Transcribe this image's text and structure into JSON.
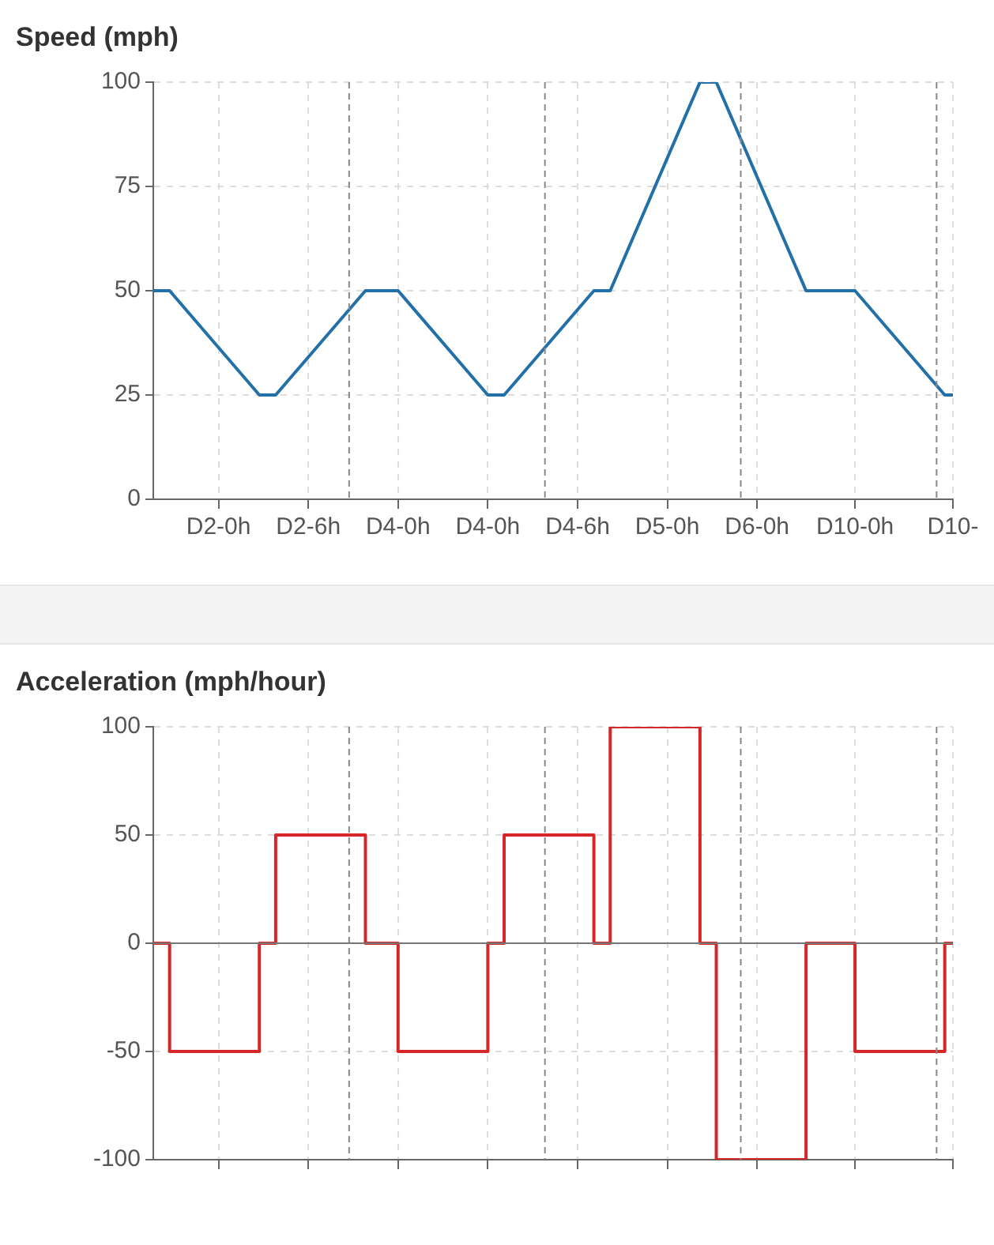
{
  "chart_data": [
    {
      "type": "line",
      "title": "Speed (mph)",
      "categories": [
        null,
        null,
        null,
        null,
        null,
        null,
        null,
        null,
        "D2-0h",
        null,
        null,
        null,
        null,
        null,
        null,
        null,
        null,
        null,
        null,
        "D2-6h",
        null,
        null,
        null,
        null,
        null,
        null,
        null,
        null,
        null,
        null,
        "D4-0h",
        null,
        null,
        null,
        null,
        null,
        null,
        null,
        null,
        null,
        null,
        "D4-0h",
        null,
        null,
        null,
        null,
        null,
        null,
        null,
        null,
        null,
        null,
        "D4-6h",
        null,
        null,
        null,
        null,
        null,
        null,
        null,
        null,
        null,
        null,
        "D5-0h",
        null,
        null,
        null,
        null,
        null,
        null,
        null,
        null,
        null,
        null,
        "D6-0h",
        null,
        null,
        null,
        null,
        null,
        null,
        null,
        null,
        null,
        null,
        null,
        "D10-0h",
        null,
        null,
        null,
        null,
        null,
        null,
        null,
        null,
        null,
        null,
        null,
        "D10-"
      ],
      "series": [
        {
          "color": "#2370a8",
          "values": [
            50,
            null,
            50,
            null,
            null,
            null,
            null,
            null,
            null,
            null,
            null,
            null,
            null,
            25,
            null,
            25,
            null,
            null,
            null,
            null,
            null,
            null,
            null,
            null,
            null,
            null,
            50,
            null,
            null,
            null,
            50,
            null,
            null,
            null,
            null,
            null,
            null,
            null,
            null,
            null,
            null,
            25,
            null,
            25,
            null,
            null,
            null,
            null,
            null,
            null,
            null,
            null,
            null,
            null,
            50,
            null,
            50,
            null,
            null,
            null,
            null,
            null,
            null,
            null,
            null,
            null,
            null,
            100,
            null,
            100,
            null,
            null,
            null,
            null,
            null,
            null,
            null,
            null,
            null,
            null,
            50,
            null,
            null,
            null,
            null,
            null,
            50,
            null,
            null,
            null,
            null,
            null,
            null,
            null,
            null,
            null,
            null,
            25,
            25
          ]
        }
      ],
      "ylim": [
        0,
        100
      ],
      "yticks": [
        0,
        25,
        50,
        75,
        100
      ],
      "grid": true,
      "legend": false,
      "marker": "none",
      "line_style": "solid"
    },
    {
      "type": "step",
      "title": "Acceleration (mph/hour)",
      "categories": [
        null,
        null,
        null,
        null,
        null,
        null,
        null,
        null,
        null,
        null,
        null,
        null,
        null,
        null,
        null,
        null,
        null,
        null,
        null,
        null,
        null,
        null,
        null,
        null,
        null,
        null,
        null,
        null,
        null,
        null,
        null,
        null,
        null,
        null,
        null,
        null,
        null,
        null,
        null,
        null,
        null,
        null,
        null,
        null,
        null,
        null,
        null,
        null,
        null,
        null,
        null,
        null,
        null,
        null,
        null,
        null,
        null,
        null,
        null,
        null,
        null,
        null,
        null,
        null,
        null,
        null,
        null,
        null,
        null,
        null,
        null,
        null,
        null,
        null,
        null,
        null,
        null,
        null,
        null,
        null,
        null,
        null,
        null,
        null,
        null,
        null,
        null,
        null,
        null,
        null,
        null,
        null,
        null,
        null,
        null,
        null,
        null,
        null,
        null
      ],
      "series": [
        {
          "color": "#d62728",
          "values": [
            0,
            null,
            -50,
            null,
            null,
            null,
            null,
            null,
            null,
            null,
            null,
            null,
            null,
            0,
            null,
            50,
            null,
            null,
            null,
            null,
            null,
            null,
            null,
            null,
            null,
            null,
            0,
            null,
            null,
            null,
            -50,
            null,
            null,
            null,
            null,
            null,
            null,
            null,
            null,
            null,
            null,
            0,
            null,
            50,
            null,
            null,
            null,
            null,
            null,
            null,
            null,
            null,
            null,
            null,
            0,
            null,
            100,
            null,
            null,
            null,
            null,
            null,
            null,
            null,
            null,
            null,
            null,
            0,
            null,
            -100,
            null,
            null,
            null,
            null,
            null,
            null,
            null,
            null,
            null,
            null,
            0,
            null,
            null,
            null,
            null,
            null,
            -50,
            null,
            null,
            null,
            null,
            null,
            null,
            null,
            null,
            null,
            null,
            0,
            0
          ]
        }
      ],
      "ylim": [
        -100,
        100
      ],
      "yticks": [
        -100,
        -50,
        0,
        50,
        100
      ],
      "grid": true,
      "legend": false,
      "marker": "none",
      "line_style": "solid",
      "tick_labels": "y",
      "ref_lines": [
        {
          "axis": "y",
          "value": 0,
          "color": "#777777",
          "line_style": "solid"
        }
      ]
    }
  ]
}
